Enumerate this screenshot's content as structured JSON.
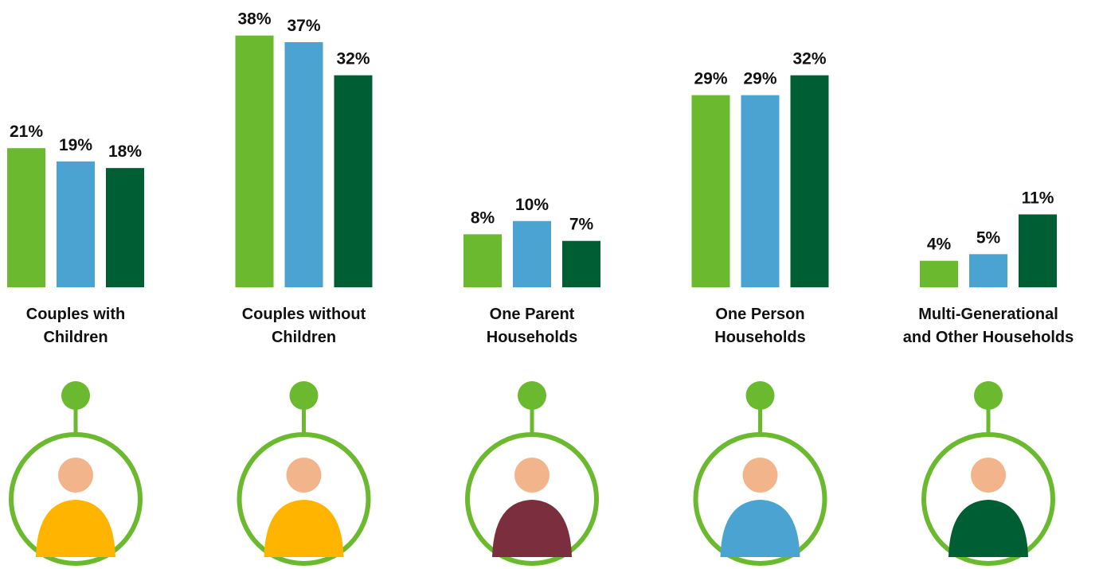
{
  "chart_data": {
    "type": "bar",
    "categories": [
      "Couples with\nChildren",
      "Couples without\nChildren",
      "One Parent\nHouseholds",
      "One Person\nHouseholds",
      "Multi-Generational\nand Other Households"
    ],
    "series": [
      {
        "color": "#6ab92f",
        "values": [
          21,
          38,
          8,
          29,
          4
        ],
        "value_labels": [
          "21%",
          "38%",
          "8%",
          "29%",
          "4%"
        ]
      },
      {
        "color": "#4ba3d1",
        "values": [
          19,
          37,
          10,
          29,
          5
        ],
        "value_labels": [
          "19%",
          "37%",
          "10%",
          "29%",
          "5%"
        ]
      },
      {
        "color": "#005e35",
        "values": [
          18,
          32,
          7,
          32,
          11
        ],
        "value_labels": [
          "18%",
          "32%",
          "7%",
          "32%",
          "11%"
        ]
      }
    ],
    "ylim": [
      0,
      40
    ]
  }
}
